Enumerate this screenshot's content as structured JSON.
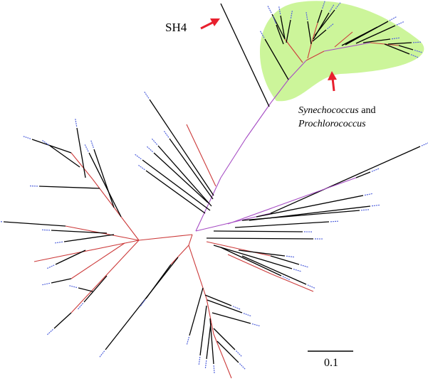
{
  "labels": {
    "sh4": "SH4",
    "clade_genus1": "Synechococcus",
    "clade_and": "and",
    "clade_genus2": "Prochlorococcus",
    "scale_bar": "0.1"
  },
  "colors": {
    "clade_highlight": "#ccf59a",
    "arrow": "#e8202e",
    "branch_default": "#000000",
    "branch_red": "#cc3a3a",
    "branch_purple": "#a64cc4",
    "leaf_label": "#5566dd"
  }
}
